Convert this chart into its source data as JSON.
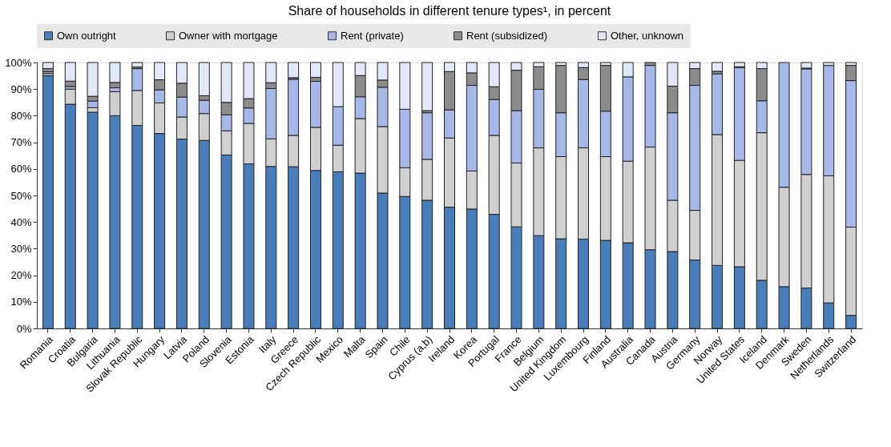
{
  "chart_data": {
    "type": "bar",
    "stacked": true,
    "title": "Share of households in different tenure types¹, in percent",
    "categories": [
      "Romania",
      "Croatia",
      "Bulgaria",
      "Lithuania",
      "Slovak Republic",
      "Hungary",
      "Latvia",
      "Poland",
      "Slovenia",
      "Estonia",
      "Italy",
      "Greece",
      "Czech Republic",
      "Mexico",
      "Malta",
      "Spain",
      "Chile",
      "Cyprus (a,b)",
      "Ireland",
      "Korea",
      "Portugal",
      "France",
      "Belgium",
      "United Kingdom",
      "Luxembourg",
      "Finland",
      "Australia",
      "Canada",
      "Austria",
      "Germany",
      "Norway",
      "United States",
      "Iceland",
      "Denmark",
      "Sweden",
      "Netherlands",
      "Switzerland"
    ],
    "series": [
      {
        "name": "Own outright",
        "color": "#4a7ebb",
        "values": [
          95.0,
          84.3,
          81.3,
          80.0,
          76.3,
          73.3,
          71.2,
          70.7,
          65.2,
          61.9,
          60.9,
          60.8,
          59.4,
          58.9,
          58.4,
          50.9,
          49.6,
          48.2,
          45.6,
          44.9,
          42.9,
          38.2,
          34.9,
          33.7,
          33.6,
          33.1,
          32.2,
          29.6,
          28.9,
          25.7,
          23.7,
          23.2,
          18.1,
          15.7,
          15.2,
          9.6,
          4.9
        ]
      },
      {
        "name": "Owner with mortgage",
        "color": "#d0d0d0",
        "values": [
          0.8,
          5.7,
          1.7,
          9.0,
          13.2,
          11.5,
          8.3,
          10.1,
          9.1,
          15.2,
          10.4,
          11.8,
          16.2,
          10.0,
          20.5,
          25.0,
          10.8,
          15.4,
          26.0,
          14.3,
          29.7,
          24.0,
          33.0,
          30.9,
          34.3,
          31.5,
          30.7,
          38.6,
          19.3,
          18.7,
          49.2,
          40.0,
          55.5,
          37.4,
          42.7,
          47.8,
          33.2
        ]
      },
      {
        "name": "Rent (private)",
        "color": "#a8b8e6",
        "values": [
          0.7,
          1.0,
          2.5,
          1.5,
          8.2,
          4.9,
          7.5,
          5.0,
          6.0,
          5.8,
          18.9,
          21.1,
          17.3,
          14.5,
          8.2,
          14.8,
          22.0,
          17.5,
          10.6,
          32.2,
          13.5,
          19.7,
          22.0,
          16.5,
          25.7,
          17.1,
          31.7,
          30.7,
          32.9,
          47.0,
          22.8,
          34.9,
          12.0,
          46.9,
          39.7,
          41.5,
          55.1
        ]
      },
      {
        "name": "Rent (subsidized)",
        "color": "#8c8c8c",
        "values": [
          1.2,
          2.0,
          1.8,
          2.0,
          0.6,
          3.8,
          5.2,
          1.7,
          4.7,
          3.5,
          2.2,
          0.6,
          1.5,
          0,
          8.0,
          2.7,
          0,
          0.8,
          14.4,
          4.7,
          4.8,
          15.2,
          8.5,
          17.8,
          4.5,
          17.2,
          0,
          1.1,
          10.0,
          6.3,
          1.0,
          0.3,
          12.1,
          0,
          0.3,
          0,
          5.7
        ]
      },
      {
        "name": "Other, unknown",
        "color": "#e2e8f7",
        "values": [
          2.3,
          7.0,
          12.7,
          7.5,
          1.7,
          6.5,
          7.8,
          12.5,
          15.0,
          13.6,
          7.6,
          5.7,
          5.6,
          16.6,
          4.9,
          6.6,
          17.6,
          18.1,
          3.4,
          3.9,
          9.1,
          2.9,
          1.6,
          1.1,
          1.9,
          1.1,
          5.4,
          0,
          8.9,
          2.3,
          3.3,
          1.6,
          2.3,
          0,
          2.1,
          1.1,
          1.1
        ]
      }
    ],
    "ylim": [
      0,
      100
    ],
    "yticks": [
      {
        "value": 0,
        "label": "0%"
      },
      {
        "value": 10,
        "label": "10%"
      },
      {
        "value": 20,
        "label": "20%"
      },
      {
        "value": 30,
        "label": "30%"
      },
      {
        "value": 40,
        "label": "40%"
      },
      {
        "value": 50,
        "label": "50%"
      },
      {
        "value": 60,
        "label": "60%"
      },
      {
        "value": 70,
        "label": "70%"
      },
      {
        "value": 80,
        "label": "80%"
      },
      {
        "value": 90,
        "label": "90%"
      },
      {
        "value": 100,
        "label": "100%"
      }
    ],
    "grid": false,
    "legend": "top"
  }
}
